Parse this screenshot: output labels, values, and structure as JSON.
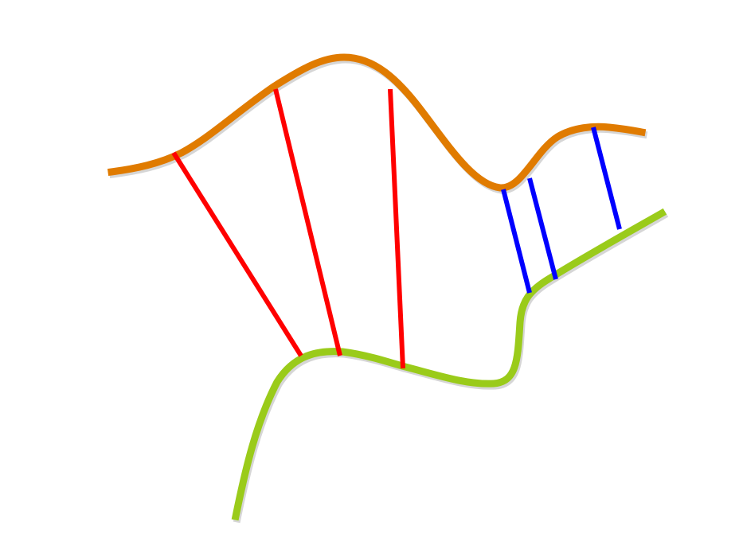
{
  "diagram": {
    "curves": [
      {
        "name": "upper-curve",
        "color": "#e07b00"
      },
      {
        "name": "lower-curve",
        "color": "#9acb1a"
      }
    ],
    "connectors": [
      {
        "name": "red-connector-1",
        "group": "red",
        "color": "#ff0000"
      },
      {
        "name": "red-connector-2",
        "group": "red",
        "color": "#ff0000"
      },
      {
        "name": "red-connector-3",
        "group": "red",
        "color": "#ff0000"
      },
      {
        "name": "blue-connector-1",
        "group": "blue",
        "color": "#0000ff"
      },
      {
        "name": "blue-connector-2",
        "group": "blue",
        "color": "#0000ff"
      },
      {
        "name": "blue-connector-3",
        "group": "blue",
        "color": "#0000ff"
      }
    ]
  }
}
